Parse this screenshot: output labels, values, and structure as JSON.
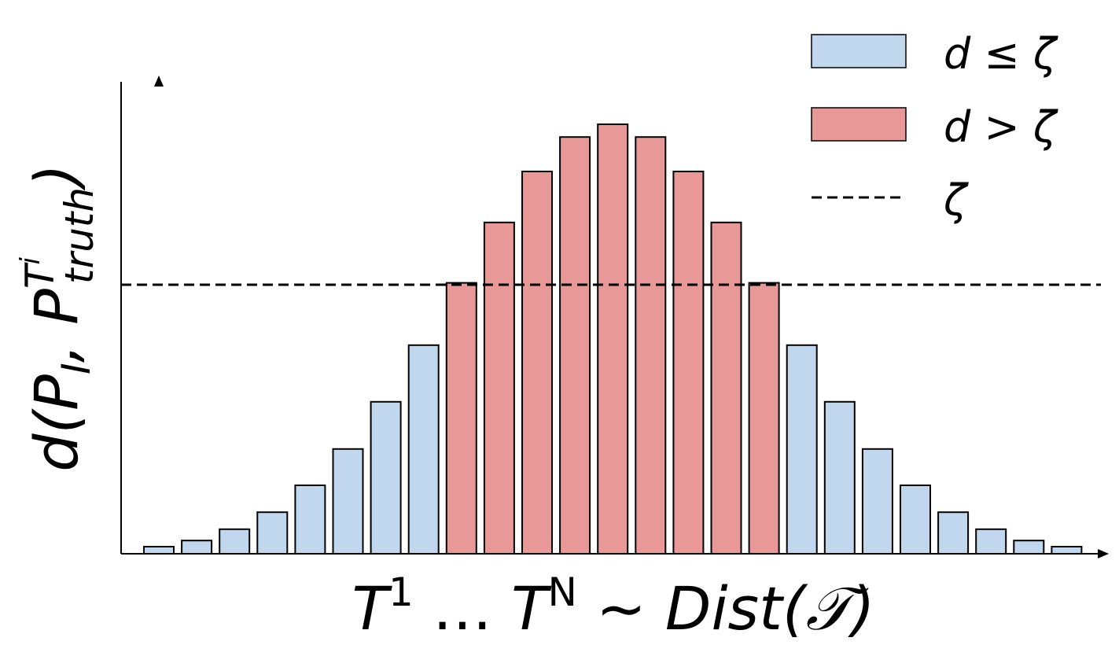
{
  "chart_data": {
    "type": "bar",
    "threshold": 0.57,
    "ylim": [
      0,
      1
    ],
    "values": [
      0.015,
      0.028,
      0.052,
      0.088,
      0.145,
      0.222,
      0.322,
      0.442,
      0.574,
      0.702,
      0.81,
      0.883,
      0.91,
      0.883,
      0.81,
      0.702,
      0.574,
      0.442,
      0.322,
      0.222,
      0.145,
      0.088,
      0.052,
      0.028,
      0.015
    ],
    "legend": {
      "position": "top-right",
      "entries": [
        {
          "key": "below",
          "label": "d ≤ ζ",
          "color": "#c0d7ee"
        },
        {
          "key": "above",
          "label": "d > ζ",
          "color": "#e99898"
        },
        {
          "key": "threshold",
          "label": "ζ",
          "style": "dashed"
        }
      ]
    },
    "xlabel": {
      "main": "T",
      "sup1": "1",
      "dots": " … ",
      "main2": "T",
      "supN": "N",
      "tail": " ∼ Dist(",
      "calT": "𝒯",
      "close": ")"
    },
    "ylabel": {
      "d": "d(",
      "P": "P",
      "subI": "I",
      "comma": ", P",
      "supT": "T",
      "supI": "i",
      "subTruth": "truth",
      "close": ")"
    },
    "grid": false
  }
}
